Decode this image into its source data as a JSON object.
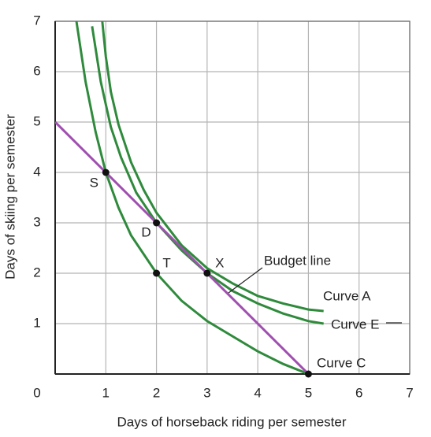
{
  "chart_data": {
    "type": "line",
    "xlabel": "Days of horseback riding per semester",
    "ylabel": "Days of skiing per semester",
    "xlim": [
      0,
      7
    ],
    "ylim": [
      0,
      7
    ],
    "xticks": [
      0,
      1,
      2,
      3,
      4,
      5,
      6,
      7
    ],
    "yticks": [
      1,
      2,
      3,
      4,
      5,
      6,
      7
    ],
    "grid": true,
    "series": [
      {
        "name": "Curve A",
        "color": "#2f8a3c",
        "x": [
          0.93,
          1,
          1.1,
          1.25,
          1.5,
          1.75,
          2,
          2.5,
          3,
          3.5,
          4,
          4.5,
          5,
          5.3
        ],
        "values": [
          7,
          6.3,
          5.6,
          4.95,
          4.2,
          3.65,
          3.2,
          2.55,
          2.1,
          1.8,
          1.55,
          1.4,
          1.28,
          1.25
        ]
      },
      {
        "name": "Curve E",
        "color": "#2f8a3c",
        "x": [
          0.73,
          0.9,
          1.1,
          1.3,
          1.6,
          2,
          2.5,
          3,
          3.5,
          4,
          4.5,
          5,
          5.3
        ],
        "values": [
          6.9,
          5.8,
          4.9,
          4.3,
          3.6,
          3,
          2.45,
          2,
          1.65,
          1.4,
          1.2,
          1.05,
          1
        ]
      },
      {
        "name": "Curve C",
        "color": "#2f8a3c",
        "x": [
          0.42,
          0.6,
          0.8,
          1,
          1.25,
          1.5,
          2,
          2.5,
          3,
          3.5,
          4,
          4.5,
          5
        ],
        "values": [
          7,
          5.8,
          4.8,
          4,
          3.3,
          2.75,
          2,
          1.45,
          1.05,
          0.75,
          0.45,
          0.2,
          0
        ]
      },
      {
        "name": "Budget line",
        "color": "#a04fb0",
        "x": [
          0,
          5
        ],
        "values": [
          5,
          0
        ]
      }
    ],
    "points": {
      "labels": [
        "S",
        "D",
        "T",
        "X",
        null
      ],
      "x": [
        1,
        2,
        2,
        3,
        5
      ],
      "values": [
        4,
        3,
        2,
        2,
        0
      ],
      "color": "#111111"
    }
  }
}
